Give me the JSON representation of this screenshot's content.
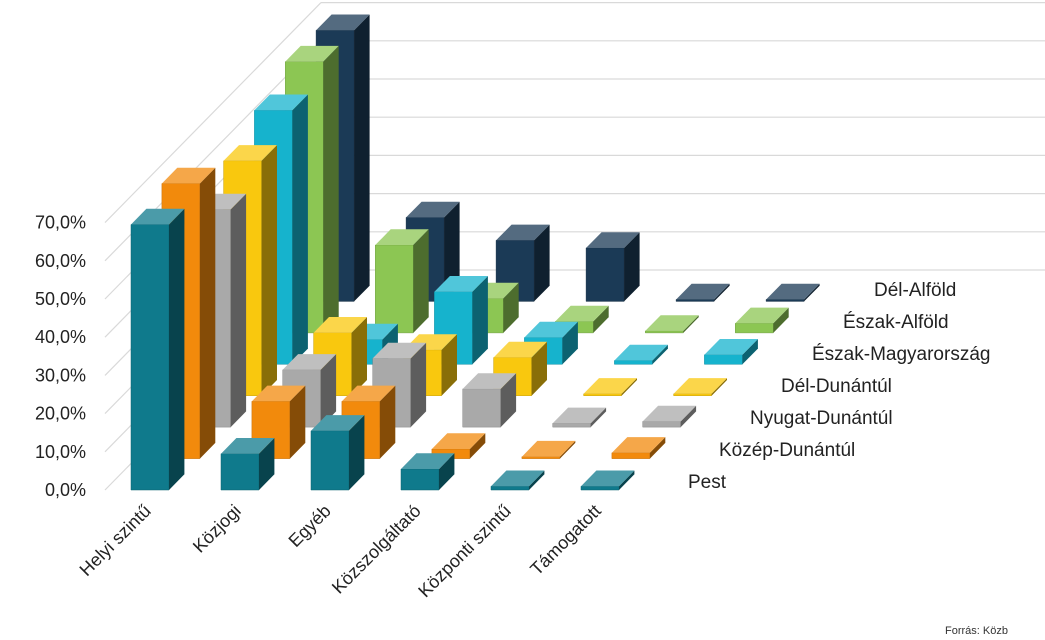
{
  "chart_data": {
    "type": "bar3d",
    "categories": [
      "Helyi szintű",
      "Közjogi",
      "Egyéb",
      "Közszolgáltató",
      "Központi szintű",
      "Támogatott"
    ],
    "y_tick_labels": [
      "0,0%",
      "10,0%",
      "20,0%",
      "30,0%",
      "40,0%",
      "50,0%",
      "60,0%",
      "70,0%"
    ],
    "ylim": [
      0,
      70
    ],
    "grid": true,
    "legend_position": "right (depth axis)",
    "series": [
      {
        "name": "Pest",
        "color": "#0f7a8c",
        "values": [
          69.5,
          9.5,
          15.5,
          5.5,
          1.0,
          1.0
        ]
      },
      {
        "name": "Közép-Dunántúl",
        "color": "#f28a0c",
        "values": [
          72.0,
          15.0,
          15.0,
          2.5,
          0.5,
          1.5
        ]
      },
      {
        "name": "Nyugat-Dunántúl",
        "color": "#a9a9a9",
        "values": [
          57.0,
          15.0,
          18.0,
          10.0,
          1.0,
          1.5
        ]
      },
      {
        "name": "Dél-Dunántúl",
        "color": "#f9c80e",
        "values": [
          61.5,
          16.5,
          12.0,
          10.0,
          0.5,
          0.5
        ]
      },
      {
        "name": "Észak-Magyarország",
        "color": "#16b3cd",
        "values": [
          66.5,
          6.5,
          19.0,
          7.0,
          1.0,
          2.5
        ]
      },
      {
        "name": "Észak-Alföld",
        "color": "#8cc653",
        "values": [
          71.0,
          23.0,
          9.0,
          3.0,
          0.5,
          2.5
        ]
      },
      {
        "name": "Dél-Alföld",
        "color": "#1b3a56",
        "values": [
          71.0,
          22.0,
          16.0,
          14.0,
          0.5,
          0.5
        ]
      }
    ]
  },
  "source": "Forrás: Közb"
}
